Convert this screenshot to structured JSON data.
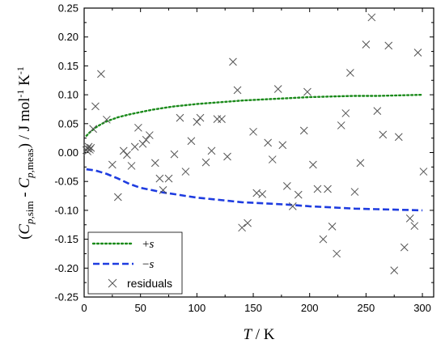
{
  "chart_data": {
    "type": "scatter",
    "xlabel": {
      "main": "T",
      "unit": " / K"
    },
    "ylabel": {
      "open": "(",
      "c1": "C",
      "c1_sub_p": "p",
      "c1_sub_rest": ",sim",
      "minus": " - ",
      "c2": "C",
      "c2_sub_p": "p",
      "c2_sub_rest": ",meas",
      "close": ")",
      "unit_a": " / J mol",
      "unit_sup_a": "-1",
      "unit_b": " K",
      "unit_sup_b": "-1"
    },
    "xlim": [
      0,
      310
    ],
    "ylim": [
      -0.25,
      0.25
    ],
    "xticks": [
      0,
      50,
      100,
      150,
      200,
      250,
      300
    ],
    "yticks": [
      -0.25,
      -0.2,
      -0.15,
      -0.1,
      -0.05,
      0.0,
      0.05,
      0.1,
      0.15,
      0.2,
      0.25
    ],
    "ytick_labels": [
      "-0.25",
      "-0.20",
      "-0.15",
      "-0.10",
      "-0.05",
      "0.00",
      "0.05",
      "0.10",
      "0.15",
      "0.20",
      "0.25"
    ],
    "xtick_labels": [
      "0",
      "50",
      "100",
      "150",
      "200",
      "250",
      "300"
    ],
    "grid": false,
    "legend_position": "bottom-left",
    "series": [
      {
        "name_sign": "+",
        "name_var": "s",
        "style": "dotted",
        "color": "#1a8a1a",
        "x": [
          2,
          5,
          10,
          15,
          20,
          30,
          40,
          50,
          60,
          70,
          80,
          90,
          100,
          120,
          140,
          160,
          180,
          200,
          220,
          240,
          260,
          280,
          300
        ],
        "y": [
          0.029,
          0.035,
          0.043,
          0.049,
          0.054,
          0.061,
          0.066,
          0.07,
          0.074,
          0.077,
          0.08,
          0.082,
          0.084,
          0.087,
          0.09,
          0.092,
          0.094,
          0.096,
          0.097,
          0.098,
          0.098,
          0.099,
          0.1
        ]
      },
      {
        "name_sign": "−",
        "name_var": "s",
        "style": "dashed",
        "color": "#1e3ce0",
        "x": [
          2,
          10,
          20,
          30,
          40,
          50,
          60,
          70,
          80,
          90,
          100,
          120,
          140,
          160,
          180,
          200,
          220,
          240,
          260,
          280,
          300
        ],
        "y": [
          -0.029,
          -0.031,
          -0.037,
          -0.045,
          -0.054,
          -0.061,
          -0.065,
          -0.069,
          -0.072,
          -0.075,
          -0.078,
          -0.082,
          -0.086,
          -0.088,
          -0.09,
          -0.093,
          -0.095,
          -0.097,
          -0.098,
          -0.099,
          -0.1
        ]
      },
      {
        "name": "residuals",
        "style": "x-marker",
        "color": "#555555",
        "points": [
          [
            2,
            0.004
          ],
          [
            3,
            0.007
          ],
          [
            4,
            0.01
          ],
          [
            5,
            0.005
          ],
          [
            3,
            0.002
          ],
          [
            6,
            0.008
          ],
          [
            8,
            0.041
          ],
          [
            10,
            0.08
          ],
          [
            15,
            0.136
          ],
          [
            20,
            0.057
          ],
          [
            25,
            -0.021
          ],
          [
            30,
            -0.077
          ],
          [
            35,
            0.003
          ],
          [
            38,
            -0.004
          ],
          [
            42,
            -0.023
          ],
          [
            45,
            0.01
          ],
          [
            48,
            0.043
          ],
          [
            52,
            0.015
          ],
          [
            55,
            0.022
          ],
          [
            58,
            0.03
          ],
          [
            63,
            -0.018
          ],
          [
            67,
            -0.045
          ],
          [
            70,
            -0.065
          ],
          [
            75,
            -0.045
          ],
          [
            80,
            -0.003
          ],
          [
            85,
            0.06
          ],
          [
            90,
            -0.033
          ],
          [
            95,
            0.02
          ],
          [
            100,
            0.053
          ],
          [
            103,
            0.06
          ],
          [
            108,
            -0.017
          ],
          [
            113,
            0.003
          ],
          [
            118,
            0.058
          ],
          [
            122,
            0.058
          ],
          [
            127,
            -0.007
          ],
          [
            132,
            0.157
          ],
          [
            136,
            0.108
          ],
          [
            140,
            -0.13
          ],
          [
            145,
            -0.122
          ],
          [
            150,
            0.036
          ],
          [
            153,
            -0.07
          ],
          [
            158,
            -0.072
          ],
          [
            163,
            0.017
          ],
          [
            167,
            -0.012
          ],
          [
            172,
            0.11
          ],
          [
            176,
            0.013
          ],
          [
            180,
            -0.058
          ],
          [
            185,
            -0.093
          ],
          [
            190,
            -0.073
          ],
          [
            195,
            0.038
          ],
          [
            198,
            0.105
          ],
          [
            203,
            -0.021
          ],
          [
            207,
            -0.063
          ],
          [
            212,
            -0.15
          ],
          [
            216,
            -0.063
          ],
          [
            220,
            -0.128
          ],
          [
            224,
            -0.175
          ],
          [
            228,
            0.047
          ],
          [
            232,
            0.068
          ],
          [
            236,
            0.138
          ],
          [
            240,
            -0.068
          ],
          [
            245,
            -0.018
          ],
          [
            250,
            0.187
          ],
          [
            255,
            0.234
          ],
          [
            260,
            0.072
          ],
          [
            265,
            0.031
          ],
          [
            270,
            0.185
          ],
          [
            275,
            -0.204
          ],
          [
            279,
            0.027
          ],
          [
            284,
            -0.164
          ],
          [
            289,
            -0.114
          ],
          [
            293,
            -0.127
          ],
          [
            296,
            0.173
          ],
          [
            301,
            -0.033
          ]
        ]
      }
    ]
  }
}
